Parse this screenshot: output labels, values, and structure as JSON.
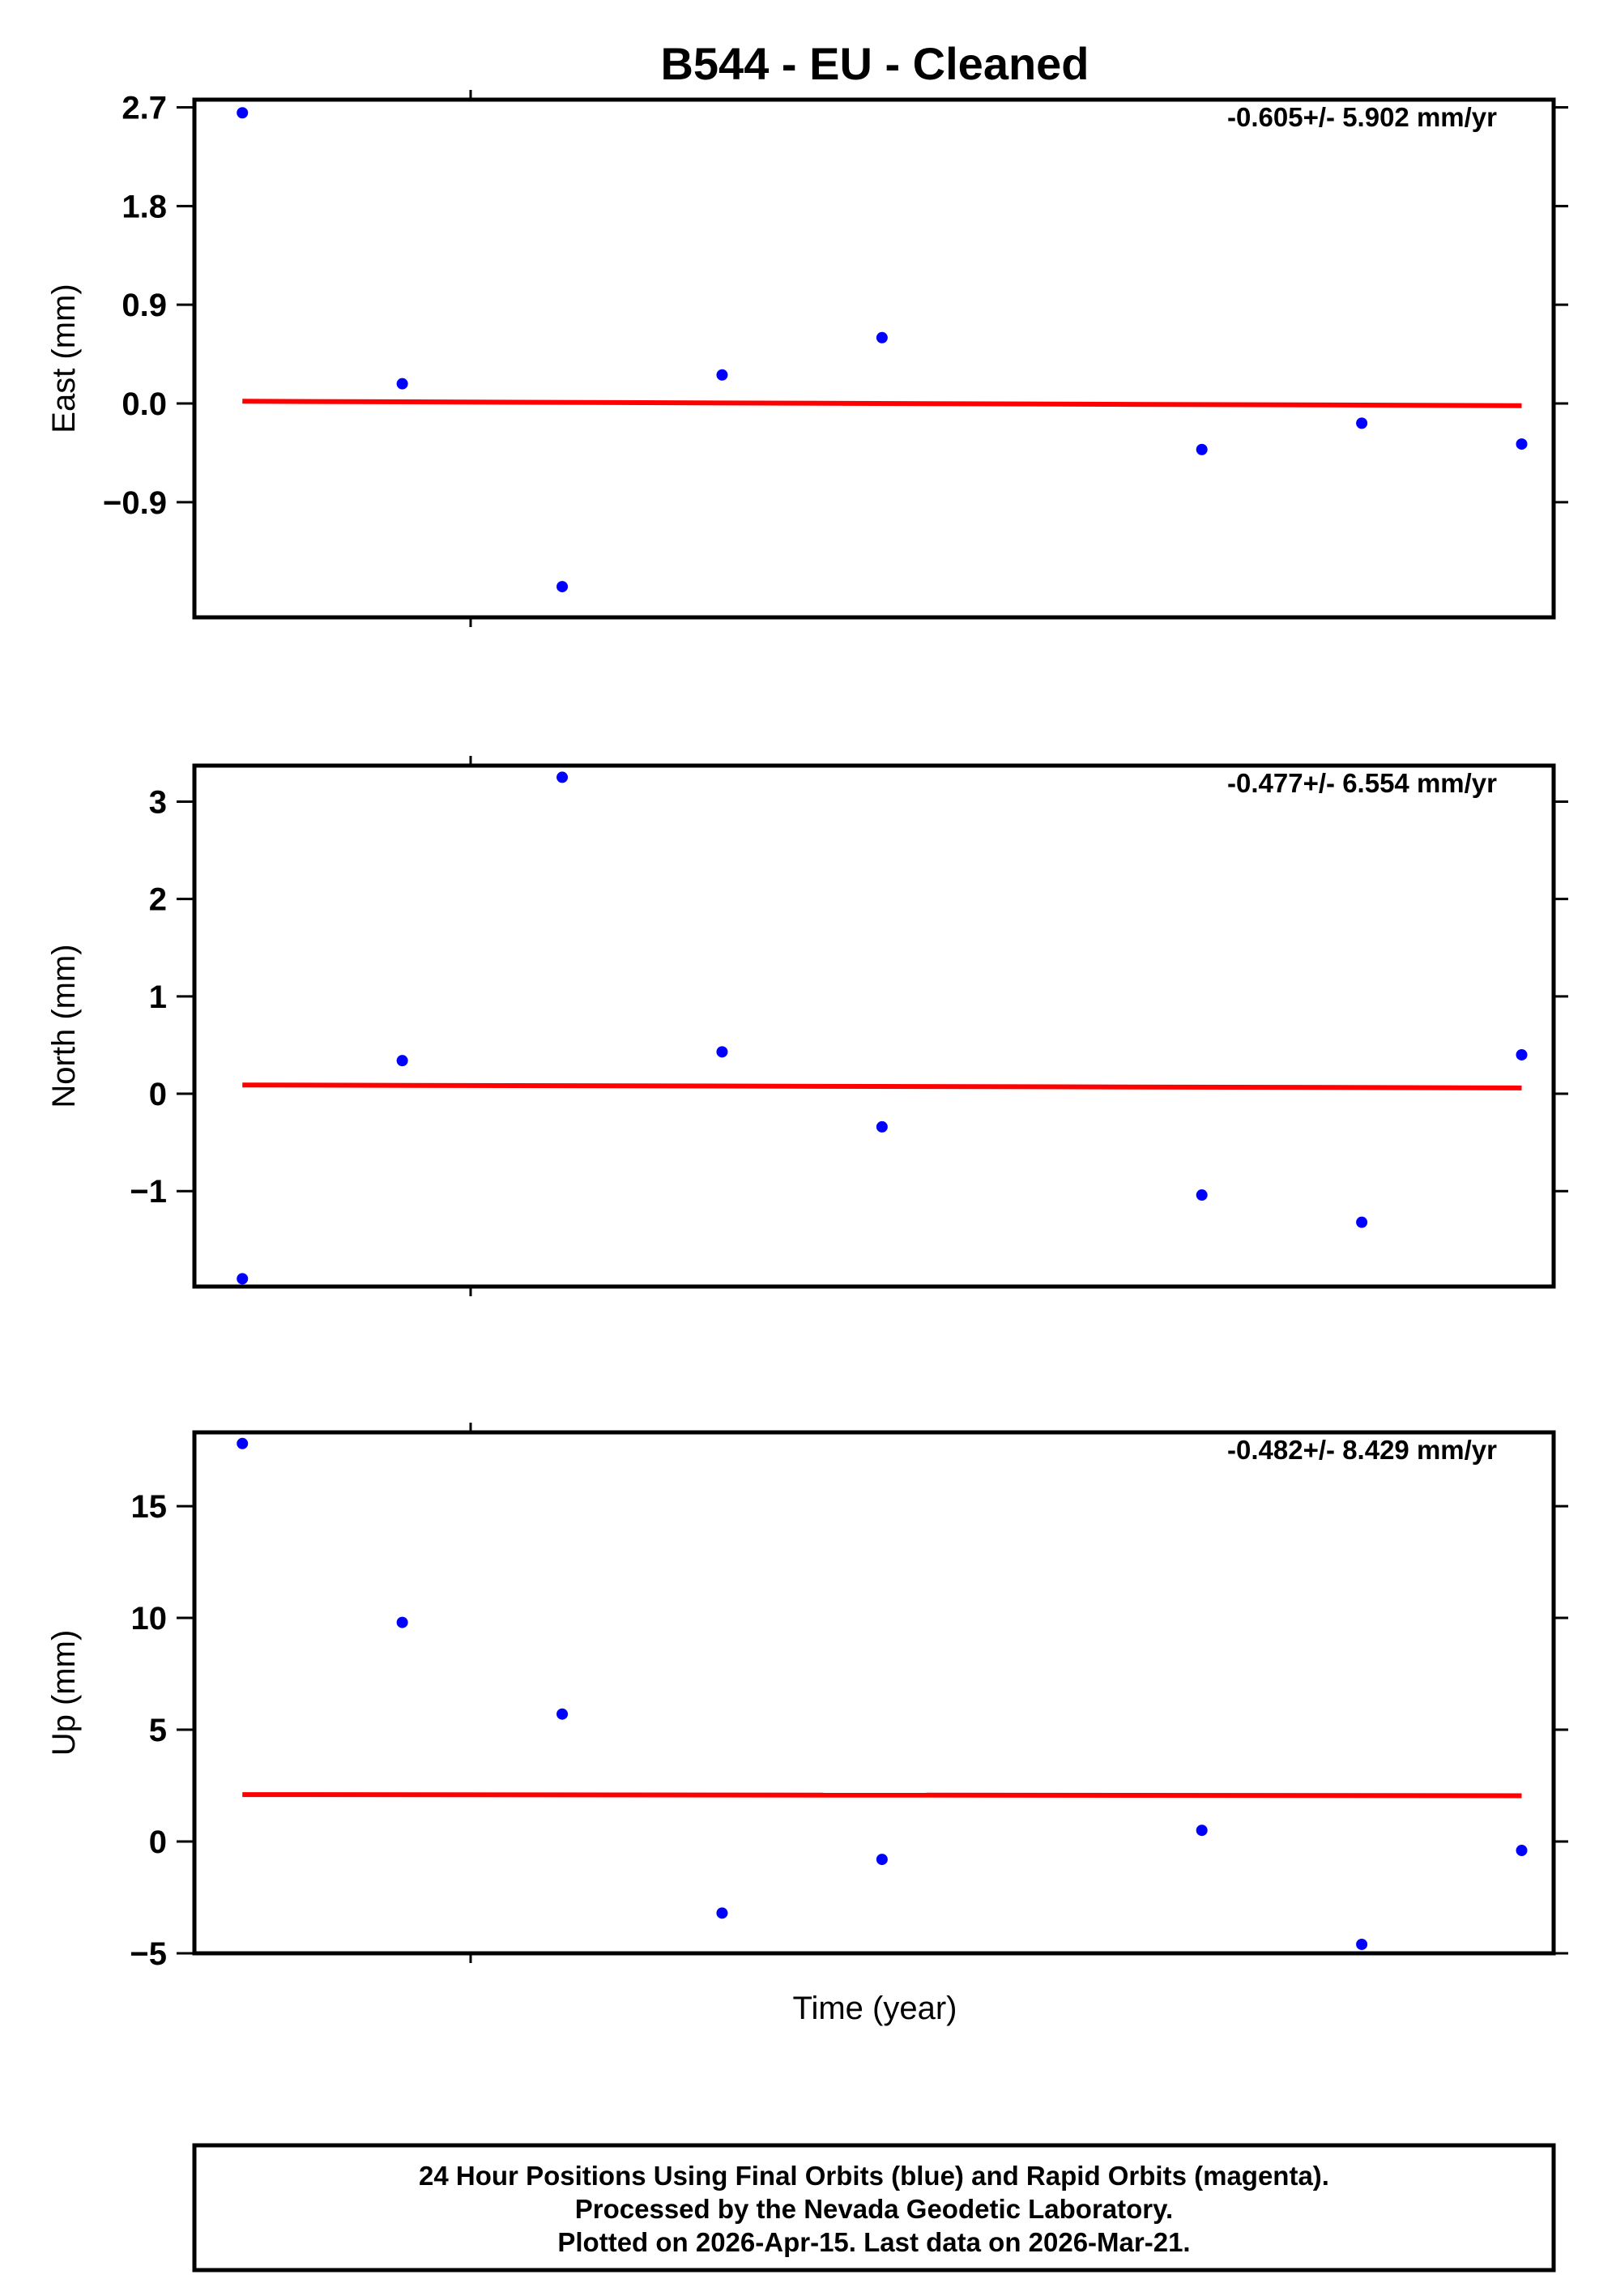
{
  "title": "B544  - EU - Cleaned",
  "colors": {
    "data": "#0000ff",
    "trend": "#ff0000",
    "frame": "#000000"
  },
  "chart_data": [
    {
      "type": "scatter",
      "ylabel": "East (mm)",
      "rate_label": "-0.605+/- 5.902 mm/yr",
      "ylim": [
        -1.95,
        2.77
      ],
      "yticks": [
        "2.7",
        "1.8",
        "0.9",
        "0.0",
        "−0.9"
      ],
      "ytick_values": [
        2.7,
        1.8,
        0.9,
        0.0,
        -0.9
      ],
      "points": [
        [
          1,
          2.65
        ],
        [
          2,
          0.18
        ],
        [
          3,
          -1.67
        ],
        [
          4,
          0.26
        ],
        [
          5,
          0.6
        ],
        [
          7,
          -0.42
        ],
        [
          8,
          -0.18
        ],
        [
          9,
          -0.37
        ]
      ],
      "trend": [
        [
          1,
          0.02
        ],
        [
          9,
          -0.02
        ]
      ]
    },
    {
      "type": "scatter",
      "ylabel": "North (mm)",
      "rate_label": "-0.477+/- 6.554 mm/yr",
      "ylim": [
        -1.98,
        3.37
      ],
      "yticks": [
        "3",
        "2",
        "1",
        "0",
        "−1"
      ],
      "ytick_values": [
        3,
        2,
        1,
        0,
        -1
      ],
      "points": [
        [
          1,
          -1.9
        ],
        [
          2,
          0.34
        ],
        [
          3,
          3.25
        ],
        [
          4,
          0.43
        ],
        [
          5,
          -0.34
        ],
        [
          7,
          -1.04
        ],
        [
          8,
          -1.32
        ],
        [
          9,
          0.4
        ]
      ],
      "trend": [
        [
          1,
          0.09
        ],
        [
          9,
          0.06
        ]
      ]
    },
    {
      "type": "scatter",
      "ylabel": "Up (mm)",
      "rate_label": "-0.482+/- 8.429 mm/yr",
      "ylim": [
        -5.0,
        18.3
      ],
      "yticks": [
        "15",
        "10",
        "5",
        "0",
        "−5"
      ],
      "ytick_values": [
        15,
        10,
        5,
        0,
        -5
      ],
      "points": [
        [
          1,
          17.8
        ],
        [
          2,
          9.8
        ],
        [
          3,
          5.7
        ],
        [
          4,
          -3.2
        ],
        [
          5,
          -0.8
        ],
        [
          7,
          0.5
        ],
        [
          8,
          -4.6
        ],
        [
          9,
          -0.4
        ]
      ],
      "trend": [
        [
          1,
          2.1
        ],
        [
          9,
          2.05
        ]
      ]
    }
  ],
  "xlabel": "Time (year)",
  "footer": [
    "24 Hour Positions Using Final Orbits (blue) and Rapid Orbits (magenta).",
    "Processed by the Nevada Geodetic Laboratory.",
    "Plotted on 2026-Apr-15. Last data on 2026-Mar-21."
  ]
}
